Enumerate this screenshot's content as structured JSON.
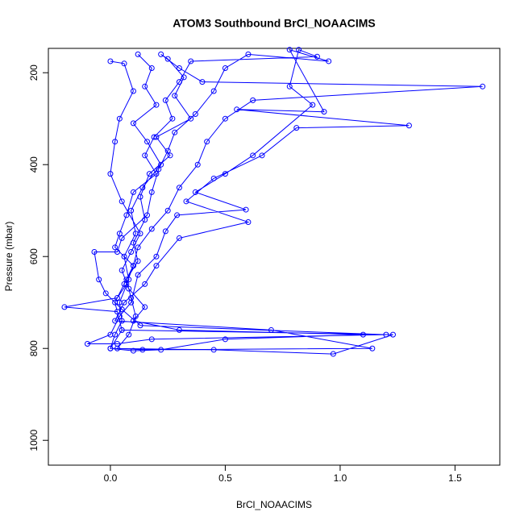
{
  "chart_data": {
    "type": "scatter-line",
    "title": "ATOM3 Southbound BrCl_NOAACIMS",
    "x_label": "BrCl_NOAACIMS",
    "y_label": "Pressure (mbar)",
    "xlim": [
      -0.27,
      1.695
    ],
    "ylim": [
      1054,
      147
    ],
    "xticks": [
      {
        "value": 0,
        "label": "0.0"
      },
      0.5,
      {
        "value": 1,
        "label": "1.0"
      },
      1.5
    ],
    "yticks": [
      200,
      400,
      600,
      800,
      1000
    ],
    "series": [
      {
        "color": "#0000ff",
        "x": [
          0.12,
          0.18,
          0.15,
          0.2,
          0.1,
          0.16,
          0.22,
          0.14,
          0.09,
          0.11,
          0.06,
          0.08,
          0.04,
          0.05,
          0.02,
          0.0,
          0.45,
          0.97,
          1.23,
          0.05,
          0.03,
          -0.2,
          0.03,
          0.07,
          0.1,
          0.12,
          0.18,
          0.25,
          0.3,
          0.38,
          0.42,
          0.5,
          0.62,
          1.62,
          0.4,
          0.3,
          0.22,
          0.25,
          0.32,
          0.28,
          0.35,
          0.2,
          0.26,
          0.17,
          0.13,
          0.15,
          0.1,
          0.12,
          0.07,
          0.09,
          0.11,
          0.08,
          0.03,
          0.14,
          1.14,
          0.7,
          0.02,
          0.06,
          0.15,
          0.2,
          0.3,
          0.6,
          0.33,
          0.45,
          0.66,
          0.81,
          1.3,
          0.55,
          0.93,
          0.78,
          0.95,
          0.6,
          0.5,
          0.45,
          0.37,
          0.28,
          0.25,
          0.21,
          0.18,
          0.16,
          0.05,
          0.03,
          -0.07,
          -0.05,
          -0.02,
          0.05,
          0.13,
          1.2,
          0.18,
          0.03,
          -0.1,
          0.0,
          0.04,
          0.09,
          0.12,
          0.2,
          0.24,
          0.29,
          0.59,
          0.37,
          0.5,
          0.62,
          0.88,
          0.78,
          0.82,
          0.9,
          0.35,
          0.3,
          0.24,
          0.27,
          0.19,
          0.15,
          0.2,
          0.1,
          0.07,
          0.04,
          0.02,
          0.1,
          0.06,
          0.02,
          0.05,
          0.0,
          0.1,
          0.22,
          0.5,
          1.1,
          0.3,
          0.1,
          0.15,
          0.08,
          0.05,
          0.09,
          0.13,
          0.05,
          0.0,
          0.02,
          0.04,
          0.1,
          0.06,
          0.0
        ],
        "y": [
          160,
          190,
          230,
          270,
          310,
          350,
          400,
          450,
          500,
          550,
          600,
          650,
          700,
          740,
          770,
          800,
          803,
          812,
          770,
          760,
          720,
          710,
          690,
          660,
          620,
          580,
          540,
          500,
          450,
          400,
          350,
          300,
          260,
          230,
          220,
          190,
          160,
          170,
          210,
          250,
          300,
          340,
          380,
          420,
          470,
          520,
          570,
          610,
          650,
          690,
          730,
          770,
          800,
          803,
          800,
          760,
          740,
          700,
          660,
          620,
          560,
          525,
          480,
          430,
          380,
          320,
          315,
          280,
          285,
          150,
          175,
          160,
          190,
          240,
          290,
          330,
          370,
          410,
          460,
          510,
          560,
          590,
          590,
          650,
          680,
          715,
          750,
          770,
          780,
          790,
          790,
          770,
          730,
          700,
          640,
          600,
          545,
          510,
          498,
          460,
          420,
          380,
          270,
          230,
          150,
          165,
          175,
          220,
          260,
          300,
          340,
          380,
          420,
          460,
          510,
          550,
          580,
          620,
          660,
          700,
          760,
          800,
          805,
          803,
          780,
          770,
          760,
          740,
          710,
          670,
          630,
          590,
          550,
          480,
          420,
          350,
          300,
          240,
          180,
          175
        ]
      }
    ]
  }
}
